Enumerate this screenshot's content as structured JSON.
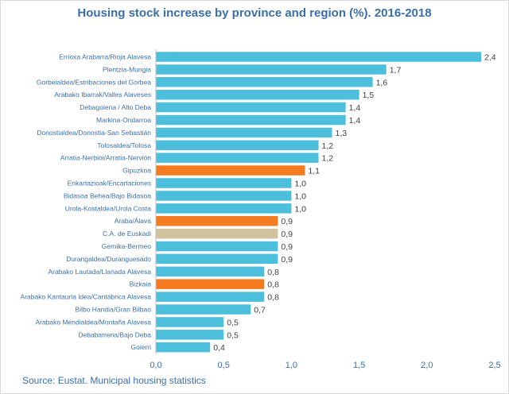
{
  "chart_data": {
    "type": "bar",
    "orientation": "horizontal",
    "title": "Housing stock increase by province and region (%). 2016-2018",
    "source": "Source: Eustat. Municipal housing statistics",
    "categories": [
      "Errioxa Arabarra/Rioja Alavesa",
      "Plentzia-Mungia",
      "Gorbeialdea/Estribaciones del Gorbea",
      "Arabako Ibarrak/Valles Alaveses",
      "Debagoiena / Alto Deba",
      "Markina-Ondarroa",
      "Donostialdea/Donostia-San Sebastián",
      "Tolosaldea/Tolosa",
      "Arratia-Nerbioi/Arratia-Nervión",
      "Gipuzkoa",
      "Enkartazioak/Encartaciones",
      "Bidasoa Behea/Bajo Bidasoa",
      "Urola-Kostaldea/Urola Costa",
      "Araba/Álava",
      "C.A. de Euskadi",
      "Gernika-Bermeo",
      "Durangaldea/Duranguesado",
      "Arabako Lautada/Llanada Alavesa",
      "Bizkaia",
      "Arabako Kantauria ldea/Cantábrica Alavesa",
      "Bilbo Handia/Gran Bilbao",
      "Arabako Mendialdea/Montaña Alavesa",
      "Debabarrena/Bajo Deba",
      "Goierri"
    ],
    "values": [
      2.4,
      1.7,
      1.6,
      1.5,
      1.4,
      1.4,
      1.3,
      1.2,
      1.2,
      1.1,
      1.0,
      1.0,
      1.0,
      0.9,
      0.9,
      0.9,
      0.9,
      0.8,
      0.8,
      0.8,
      0.7,
      0.5,
      0.5,
      0.4
    ],
    "value_labels": [
      "2,4",
      "1,7",
      "1,6",
      "1,5",
      "1,4",
      "1,4",
      "1,3",
      "1,2",
      "1,2",
      "1,1",
      "1,0",
      "1,0",
      "1,0",
      "0,9",
      "0,9",
      "0,9",
      "0,9",
      "0,8",
      "0,8",
      "0,8",
      "0,7",
      "0,5",
      "0,5",
      "0,4"
    ],
    "bar_kind": [
      "region",
      "region",
      "region",
      "region",
      "region",
      "region",
      "region",
      "region",
      "region",
      "province",
      "region",
      "region",
      "region",
      "province",
      "total",
      "region",
      "region",
      "region",
      "province",
      "region",
      "region",
      "region",
      "region",
      "region"
    ],
    "xlim": [
      0,
      2.5
    ],
    "x_ticks": [
      0,
      0.5,
      1.0,
      1.5,
      2.0,
      2.5
    ],
    "x_tick_labels": [
      "0,0",
      "0,5",
      "1,0",
      "1,5",
      "2,0",
      "2,5"
    ],
    "grid": false,
    "legend": "none",
    "colors": {
      "region": "#4bbfdc",
      "province": "#f47b20",
      "total": "#d2c3a0",
      "title": "#3a6fa8",
      "axis_text": "#3a6fa8",
      "category_text": "#3a6fa8"
    }
  }
}
